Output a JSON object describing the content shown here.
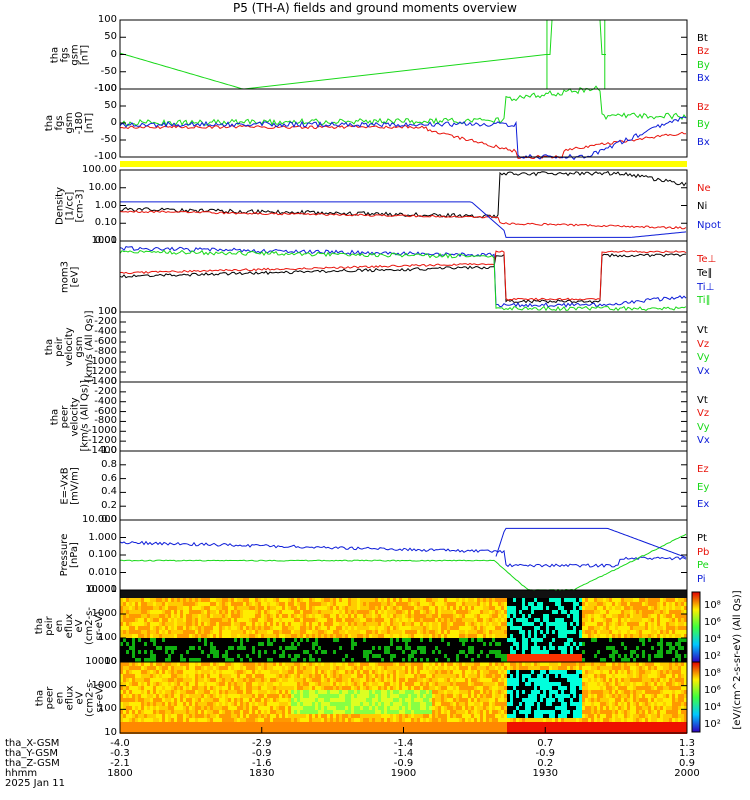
{
  "title": "P5 (TH-A) fields and ground moments overview",
  "colors": {
    "black": "#000000",
    "red": "#e8140c",
    "green": "#18d818",
    "blue": "#0c1cd8",
    "yellow": "#ffff00"
  },
  "panels": [
    {
      "id": "p1",
      "ylabel": "tha\nfgs\ngsm\n[nT]",
      "ticks": [
        "100",
        "50",
        "0",
        "-50",
        "-100"
      ],
      "legend": [
        {
          "text": "Bt",
          "color": "black"
        },
        {
          "text": "Bz",
          "color": "red"
        },
        {
          "text": "By",
          "color": "green"
        },
        {
          "text": "Bx",
          "color": "blue"
        }
      ]
    },
    {
      "id": "p2",
      "ylabel": "tha\nfgs\ngsm\n-180\n[nT]",
      "ticks": [
        "100",
        "50",
        "0",
        "-50",
        "-100"
      ],
      "legend": [
        {
          "text": "Bz",
          "color": "red"
        },
        {
          "text": "By",
          "color": "green"
        },
        {
          "text": "Bx",
          "color": "blue"
        }
      ]
    },
    {
      "id": "p3",
      "ylabel": "Density\n[1/cc]\n[cm-3]",
      "ticks": [
        "100.00",
        "10.00",
        "1.00",
        "0.10",
        "0.01"
      ],
      "legend": [
        {
          "text": "Ne",
          "color": "red"
        },
        {
          "text": "Ni",
          "color": "black"
        },
        {
          "text": "Npot",
          "color": "blue"
        }
      ]
    },
    {
      "id": "p4",
      "ylabel": "mom3\n[eV]",
      "ticks": [
        "1000",
        "100"
      ],
      "legend": [
        {
          "text": "Te⊥",
          "color": "red"
        },
        {
          "text": "Te∥",
          "color": "black"
        },
        {
          "text": "Ti⊥",
          "color": "blue"
        },
        {
          "text": "Ti∥",
          "color": "green"
        }
      ]
    },
    {
      "id": "p5",
      "ylabel": "tha\npeir\nvelocity\ngsm\n[km/s (All Qs)]",
      "ticks": [
        "0",
        "-200",
        "-400",
        "-600",
        "-800",
        "-1000",
        "-1200",
        "-1400"
      ],
      "legend": [
        {
          "text": "Vt",
          "color": "black"
        },
        {
          "text": "Vz",
          "color": "red"
        },
        {
          "text": "Vy",
          "color": "green"
        },
        {
          "text": "Vx",
          "color": "blue"
        }
      ]
    },
    {
      "id": "p6",
      "ylabel": "tha\npeer\nvelocity\n[km/s (All Qs)]",
      "ticks": [
        "0",
        "-200",
        "-400",
        "-600",
        "-800",
        "-1000",
        "-1200",
        "-1400"
      ],
      "legend": [
        {
          "text": "Vt",
          "color": "black"
        },
        {
          "text": "Vz",
          "color": "red"
        },
        {
          "text": "Vy",
          "color": "green"
        },
        {
          "text": "Vx",
          "color": "blue"
        }
      ]
    },
    {
      "id": "p7",
      "ylabel": "E=-VxB\n[mV/m]",
      "ticks": [
        "1.0",
        "0.8",
        "0.6",
        "0.4",
        "0.2",
        "0.0"
      ],
      "legend": [
        {
          "text": "Ez",
          "color": "red"
        },
        {
          "text": "Ey",
          "color": "green"
        },
        {
          "text": "Ex",
          "color": "blue"
        }
      ]
    },
    {
      "id": "p8",
      "ylabel": "Pressure\n[nPa]",
      "ticks": [
        "10.000",
        "1.000",
        "0.100",
        "0.010",
        "0.001"
      ],
      "legend": [
        {
          "text": "Pt",
          "color": "black"
        },
        {
          "text": "Pb",
          "color": "red"
        },
        {
          "text": "Pe",
          "color": "green"
        },
        {
          "text": "Pi",
          "color": "blue"
        }
      ]
    },
    {
      "id": "p9",
      "ylabel": "tha\npeir\nen\neflux\neV\n(cm2-s-\nsr-eV)",
      "ticks": [
        "10000",
        "1000",
        "100",
        "10"
      ],
      "legend": []
    },
    {
      "id": "p10",
      "ylabel": "tha\npeer\nen\neflux\neV\n(cm2-s-\nsr-eV)",
      "ticks": [
        "10000",
        "1000",
        "100",
        "10"
      ],
      "legend": []
    }
  ],
  "colorbar": {
    "label": "[eV/(cm^2-s-sr-eV) (All Qs)]",
    "top_ticks": [
      "10⁸",
      "10⁶",
      "10⁴",
      "10²"
    ],
    "bottom_ticks": [
      "10⁸",
      "10⁶",
      "10⁴",
      "10²"
    ]
  },
  "xaxis": {
    "rows": [
      {
        "label": "tha_X-GSM",
        "values": [
          "-4.0",
          "-2.9",
          "-1.4",
          "0.7",
          "1.3"
        ]
      },
      {
        "label": "tha_Y-GSM",
        "values": [
          "-0.3",
          "-0.9",
          "-1.4",
          "-0.9",
          "1.3"
        ]
      },
      {
        "label": "tha_Z-GSM",
        "values": [
          "-2.1",
          "-1.6",
          "-0.9",
          "0.2",
          "0.9"
        ]
      },
      {
        "label": "hhmm",
        "values": [
          "1800",
          "1830",
          "1900",
          "1930",
          "2000"
        ]
      }
    ],
    "date": "2025 Jan 11"
  },
  "chart_data": {
    "type": "line",
    "title": "P5 (TH-A) fields and ground moments overview",
    "x": [
      "1800",
      "1830",
      "1900",
      "1930",
      "2000"
    ],
    "xunits": "hhmm",
    "note_series": [
      {
        "panel": "p1",
        "name": "By",
        "values": [
          -10,
          -100,
          null,
          100,
          -100
        ]
      },
      {
        "panel": "p3",
        "name": "Ni",
        "values": [
          0.7,
          0.3,
          0.2,
          100,
          6
        ]
      },
      {
        "panel": "p3",
        "name": "Ne",
        "values": [
          0.6,
          0.3,
          0.2,
          0.1,
          0.05
        ]
      },
      {
        "panel": "p3",
        "name": "Npot",
        "values": [
          2,
          2,
          2,
          0.01,
          0.03
        ]
      },
      {
        "panel": "p4",
        "name": "Te∥",
        "values": [
          200,
          1500,
          1500,
          70,
          2500
        ]
      },
      {
        "panel": "p8",
        "name": "Pi",
        "values": [
          0.3,
          0.03,
          0.03,
          0.02,
          0.05
        ]
      },
      {
        "panel": "p8",
        "name": "Pb",
        "values": [
          0.02,
          0.02,
          0.02,
          3,
          0.05
        ]
      }
    ]
  }
}
